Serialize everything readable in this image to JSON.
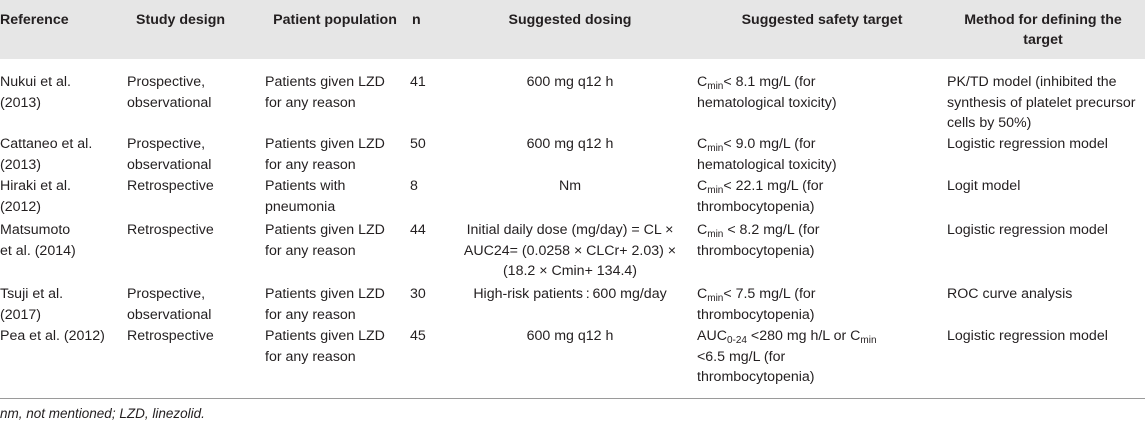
{
  "header": {
    "reference": "Reference",
    "study_design": "Study design",
    "patient_population": "Patient population",
    "n": "n",
    "suggested_dosing": "Suggested dosing",
    "suggested_safety_target": "Suggested safety target",
    "method": "Method for defining the target"
  },
  "rows": [
    {
      "reference": [
        "Nukui et al.",
        "(2013)"
      ],
      "design": [
        "Prospective,",
        "observational"
      ],
      "population": [
        "Patients given LZD",
        "for any reason"
      ],
      "n": "41",
      "dosing": [
        "600 mg q12 h"
      ],
      "target_sub": "min",
      "target_line1": "< 8.1 mg/L (for",
      "target_lines": [
        "hematological toxicity)"
      ],
      "method": [
        "PK/TD model (inhibited the",
        "synthesis of platelet precursor",
        "cells by 50%)"
      ]
    },
    {
      "reference": [
        "Cattaneo et al.",
        "(2013)"
      ],
      "design": [
        "Prospective,",
        "observational"
      ],
      "population": [
        "Patients given LZD",
        "for any reason"
      ],
      "n": "50",
      "dosing": [
        "600 mg q12 h"
      ],
      "target_sub": "min",
      "target_line1": "< 9.0 mg/L (for",
      "target_lines": [
        "hematological toxicity)"
      ],
      "method": [
        "Logistic regression model"
      ]
    },
    {
      "reference": [
        "Hiraki et al.",
        "(2012)"
      ],
      "design": [
        "Retrospective"
      ],
      "population": [
        "Patients with",
        "pneumonia"
      ],
      "n": "8",
      "dosing": [
        "Nm"
      ],
      "target_sub": "min",
      "target_line1": "< 22.1 mg/L (for",
      "target_lines": [
        "thrombocytopenia)"
      ],
      "method": [
        "Logit model"
      ]
    },
    {
      "reference": [
        "Matsumoto",
        "et al. (2014)"
      ],
      "design": [
        "Retrospective"
      ],
      "population": [
        "Patients given LZD",
        "for any reason"
      ],
      "n": "44",
      "dosing": [
        "Initial daily dose (mg/day) = CL ×",
        "AUC24= (0.0258 × CLCr+ 2.03) ×",
        "(18.2 × Cmin+ 134.4)"
      ],
      "target_sub": "min",
      "target_line1": " < 8.2 mg/L (for",
      "target_lines": [
        "thrombocytopenia)"
      ],
      "method": [
        "Logistic regression model"
      ]
    },
    {
      "reference": [
        "Tsuji et al.",
        "(2017)"
      ],
      "design": [
        "Prospective,",
        "observational"
      ],
      "population": [
        "Patients given LZD",
        "for any reason"
      ],
      "n": "30",
      "dosing": [
        "High-risk patients : 600 mg/day"
      ],
      "target_sub": "min",
      "target_line1": "< 7.5 mg/L (for",
      "target_lines": [
        "thrombocytopenia)"
      ],
      "method": [
        "ROC curve analysis"
      ]
    },
    {
      "reference": [
        "Pea et al. (2012)"
      ],
      "design": [
        "Retrospective"
      ],
      "population": [
        "Patients given LZD",
        "for any reason"
      ],
      "n": "45",
      "dosing": [
        "600 mg q12 h"
      ],
      "target_last": {
        "auc_prefix": "AUC",
        "auc_sub": "0-24",
        "mid": " <280 mg h/L or C",
        "c_sub": "min",
        "lines": [
          "<6.5 mg/L (for",
          "thrombocytopenia)"
        ]
      },
      "method": [
        "Logistic regression model"
      ]
    }
  ],
  "footnote": "nm, not mentioned; LZD, linezolid."
}
